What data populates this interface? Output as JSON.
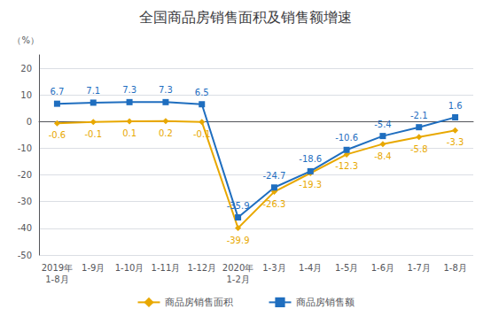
{
  "chart_data": {
    "type": "line",
    "title": "全国商品房销售面积及销售额增速",
    "ylabel": "（%）",
    "categories": [
      "2019年\n1-8月",
      "1-9月",
      "1-10月",
      "1-11月",
      "1-12月",
      "2020年\n1-2月",
      "1-3月",
      "1-4月",
      "1-5月",
      "1-6月",
      "1-7月",
      "1-8月"
    ],
    "series": [
      {
        "name": "商品房销售面积",
        "color": "#E8A800",
        "marker": "diamond",
        "values": [
          -0.6,
          -0.1,
          0.1,
          0.2,
          -0.1,
          -39.9,
          -26.3,
          -19.3,
          -12.3,
          -8.4,
          -5.8,
          -3.3
        ]
      },
      {
        "name": "商品房销售额",
        "color": "#1F6EBF",
        "marker": "square",
        "values": [
          6.7,
          7.1,
          7.3,
          7.3,
          6.5,
          -35.9,
          -24.7,
          -18.6,
          -10.6,
          -5.4,
          -2.1,
          1.6
        ]
      }
    ],
    "ylim": [
      -50,
      25
    ],
    "yticks": [
      -50,
      -40,
      -30,
      -20,
      -10,
      0,
      10,
      20
    ],
    "grid": true,
    "data_labels": true,
    "legend": "bottom"
  }
}
